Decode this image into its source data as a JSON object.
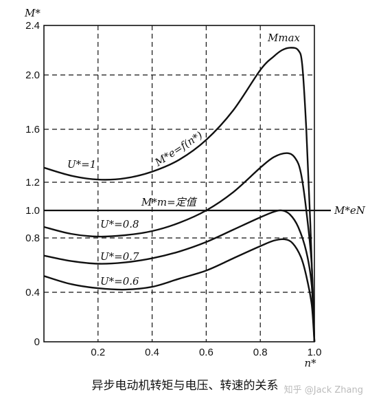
{
  "chart_data": {
    "type": "line",
    "title": "",
    "xlabel": "n*",
    "ylabel": "M*",
    "xlim": [
      0,
      1.0
    ],
    "ylim": [
      0,
      2.4
    ],
    "grid": true,
    "xticks": [
      "0.2",
      "0.4",
      "0.6",
      "0.8",
      "1.0"
    ],
    "yticks": [
      "0",
      "0.4",
      "0.8",
      "1.0",
      "1.2",
      "1.6",
      "2.0",
      "2.4"
    ],
    "series": [
      {
        "name": "U*=1",
        "curve_label": "M*e=f(n*)",
        "peak_label": "Mmax",
        "x": [
          0,
          0.1,
          0.2,
          0.3,
          0.4,
          0.5,
          0.6,
          0.7,
          0.8,
          0.85,
          0.88,
          0.91,
          0.94,
          0.955,
          0.97,
          0.985,
          1.0
        ],
        "y": [
          1.31,
          1.25,
          1.22,
          1.23,
          1.28,
          1.37,
          1.52,
          1.74,
          2.04,
          2.15,
          2.2,
          2.22,
          2.2,
          2.08,
          1.6,
          0.9,
          0
        ]
      },
      {
        "name": "U*=0.8",
        "x": [
          0,
          0.1,
          0.2,
          0.3,
          0.4,
          0.5,
          0.6,
          0.7,
          0.8,
          0.85,
          0.9,
          0.93,
          0.95,
          0.97,
          0.99,
          1.0
        ],
        "y": [
          0.88,
          0.83,
          0.81,
          0.82,
          0.85,
          0.91,
          1.0,
          1.13,
          1.31,
          1.39,
          1.42,
          1.38,
          1.27,
          1.0,
          0.6,
          0
        ]
      },
      {
        "name": "U*=0.7",
        "x": [
          0,
          0.1,
          0.2,
          0.3,
          0.4,
          0.5,
          0.6,
          0.7,
          0.8,
          0.85,
          0.88,
          0.91,
          0.94,
          0.97,
          0.99,
          1.0
        ],
        "y": [
          0.67,
          0.63,
          0.61,
          0.62,
          0.65,
          0.7,
          0.77,
          0.86,
          0.95,
          0.99,
          1.0,
          0.97,
          0.88,
          0.7,
          0.45,
          0
        ]
      },
      {
        "name": "U*=0.6",
        "x": [
          0,
          0.1,
          0.2,
          0.3,
          0.4,
          0.5,
          0.6,
          0.7,
          0.8,
          0.85,
          0.89,
          0.92,
          0.95,
          0.97,
          0.99,
          1.0
        ],
        "y": [
          0.52,
          0.46,
          0.43,
          0.42,
          0.44,
          0.5,
          0.56,
          0.65,
          0.74,
          0.78,
          0.79,
          0.76,
          0.66,
          0.52,
          0.3,
          0
        ]
      }
    ],
    "reference_lines": [
      {
        "y": 1.0,
        "label": "M*m=定值",
        "right_label": "M*eN"
      }
    ],
    "caption": "异步电动机转矩与电压、转速的关系"
  },
  "watermark": "知乎 @Jack Zhang"
}
